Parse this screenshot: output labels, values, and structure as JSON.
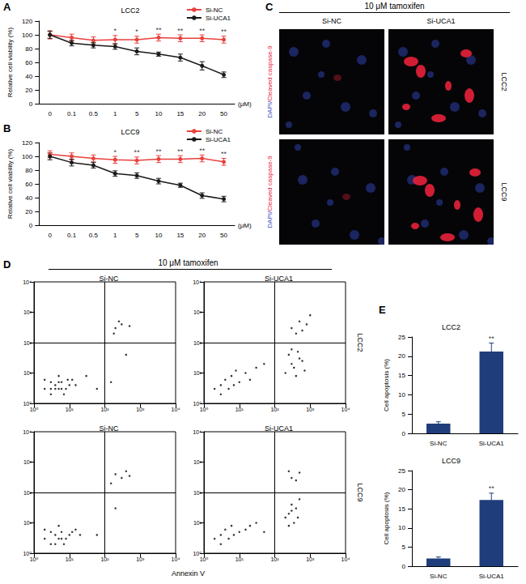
{
  "chart_data": [
    {
      "type": "line",
      "title": "LCC2",
      "xlabel": "(μM)",
      "ylabel": "Relative cell viability (%)",
      "categories": [
        "0",
        "0.1",
        "0.5",
        "1",
        "5",
        "10",
        "15",
        "20",
        "50"
      ],
      "ylim": [
        0,
        120
      ],
      "yticks": [
        0,
        20,
        40,
        60,
        80,
        100,
        120
      ],
      "grid": false,
      "legend": "upper right",
      "series": [
        {
          "name": "Si-NC",
          "color": "#e8413c",
          "marker": "circle",
          "line_style": "solid",
          "values": [
            100,
            96,
            92,
            93,
            93,
            96,
            95,
            95,
            93
          ],
          "errors": [
            6,
            5,
            5,
            6,
            5,
            5,
            5,
            5,
            5
          ]
        },
        {
          "name": "Si-UCA1",
          "color": "#1a1a1a",
          "marker": "circle",
          "line_style": "solid",
          "values": [
            100,
            88,
            85,
            83,
            76,
            72,
            67,
            55,
            42
          ],
          "errors": [
            5,
            4,
            4,
            4,
            5,
            3,
            5,
            6,
            4
          ]
        }
      ],
      "annotations": [
        {
          "category": "1",
          "text": "*"
        },
        {
          "category": "5",
          "text": "*"
        },
        {
          "category": "10",
          "text": "**"
        },
        {
          "category": "15",
          "text": "**"
        },
        {
          "category": "20",
          "text": "**"
        },
        {
          "category": "50",
          "text": "**"
        }
      ]
    },
    {
      "type": "line",
      "title": "LCC9",
      "xlabel": "(μM)",
      "ylabel": "Relative cell viability (%)",
      "categories": [
        "0",
        "0.1",
        "0.5",
        "1",
        "5",
        "10",
        "15",
        "20",
        "50"
      ],
      "ylim": [
        0,
        120
      ],
      "yticks": [
        0,
        20,
        40,
        60,
        80,
        100,
        120
      ],
      "grid": false,
      "legend": "upper right",
      "series": [
        {
          "name": "Si-NC",
          "color": "#e8413c",
          "marker": "circle",
          "line_style": "solid",
          "values": [
            103,
            100,
            97,
            95,
            94,
            96,
            96,
            97,
            92
          ],
          "errors": [
            5,
            5,
            5,
            5,
            5,
            5,
            5,
            5,
            5
          ]
        },
        {
          "name": "Si-UCA1",
          "color": "#1a1a1a",
          "marker": "circle",
          "line_style": "solid",
          "values": [
            100,
            91,
            87,
            75,
            72,
            64,
            58,
            43,
            38
          ],
          "errors": [
            5,
            5,
            4,
            4,
            4,
            4,
            3,
            4,
            4
          ]
        }
      ],
      "annotations": [
        {
          "category": "1",
          "text": "*"
        },
        {
          "category": "5",
          "text": "**"
        },
        {
          "category": "10",
          "text": "**"
        },
        {
          "category": "15",
          "text": "**"
        },
        {
          "category": "20",
          "text": "**"
        },
        {
          "category": "50",
          "text": "**"
        }
      ]
    },
    {
      "type": "scatter",
      "title": "Si-NC",
      "log": true,
      "color": "#000000",
      "marker": "circle",
      "grid": false,
      "xlim": [
        1,
        10000
      ],
      "ylim": [
        1,
        10000
      ],
      "xticks": [
        {
          "value": 1,
          "label": "10⁰"
        },
        {
          "value": 10,
          "label": "10¹"
        },
        {
          "value": 100,
          "label": "10²"
        },
        {
          "value": 1000,
          "label": "10³"
        },
        {
          "value": 10000,
          "label": "10⁴"
        }
      ],
      "yticks": [
        {
          "value": 1,
          "label": "10⁰"
        },
        {
          "value": 10,
          "label": "10¹"
        },
        {
          "value": 100,
          "label": "10²"
        },
        {
          "value": 1000,
          "label": "10³"
        },
        {
          "value": 10000,
          "label": "10⁴"
        }
      ],
      "quadrant": {
        "x": 100,
        "y": 100
      },
      "x": [
        2,
        3,
        4,
        5,
        6,
        3,
        8,
        10,
        2,
        5,
        7,
        4,
        12,
        6,
        3,
        9,
        15,
        5,
        60,
        30,
        150,
        400,
        180,
        200,
        300,
        500,
        250
      ],
      "values": [
        3,
        2,
        4,
        3,
        5,
        5,
        3,
        4,
        6,
        8,
        2,
        3,
        6,
        3,
        3,
        6,
        4,
        5,
        3,
        8,
        5,
        40,
        200,
        300,
        400,
        350,
        500
      ]
    },
    {
      "type": "scatter",
      "title": "Si-UCA1",
      "log": true,
      "color": "#000000",
      "marker": "circle",
      "grid": false,
      "xlim": [
        1,
        10000
      ],
      "ylim": [
        1,
        10000
      ],
      "xticks": [
        {
          "value": 1,
          "label": "10⁰"
        },
        {
          "value": 10,
          "label": "10¹"
        },
        {
          "value": 100,
          "label": "10²"
        },
        {
          "value": 1000,
          "label": "10³"
        },
        {
          "value": 10000,
          "label": "10⁴"
        }
      ],
      "yticks": [
        {
          "value": 1,
          "label": "10⁰"
        },
        {
          "value": 10,
          "label": "10¹"
        },
        {
          "value": 100,
          "label": "10²"
        },
        {
          "value": 1000,
          "label": "10³"
        },
        {
          "value": 10000,
          "label": "10⁴"
        }
      ],
      "quadrant": {
        "x": 100,
        "y": 100
      },
      "x": [
        2,
        3,
        5,
        4,
        7,
        10,
        3,
        6,
        15,
        20,
        8,
        30,
        50,
        200,
        300,
        400,
        500,
        250,
        350,
        600,
        450,
        700,
        300,
        300,
        500,
        800,
        400,
        1000,
        600
      ],
      "values": [
        3,
        4,
        3,
        6,
        4,
        5,
        2,
        8,
        10,
        6,
        12,
        15,
        20,
        10,
        20,
        8,
        30,
        40,
        15,
        25,
        50,
        12,
        60,
        300,
        500,
        400,
        200,
        800,
        250
      ]
    },
    {
      "type": "scatter",
      "title": "Si-NC",
      "log": true,
      "color": "#000000",
      "marker": "circle",
      "grid": false,
      "xlim": [
        1,
        10000
      ],
      "ylim": [
        1,
        10000
      ],
      "xticks": [
        {
          "value": 1,
          "label": "10⁰"
        },
        {
          "value": 10,
          "label": "10¹"
        },
        {
          "value": 100,
          "label": "10²"
        },
        {
          "value": 1000,
          "label": "10³"
        },
        {
          "value": 10000,
          "label": "10⁴"
        }
      ],
      "yticks": [
        {
          "value": 1,
          "label": "10⁰"
        },
        {
          "value": 10,
          "label": "10¹"
        },
        {
          "value": 100,
          "label": "10²"
        },
        {
          "value": 1000,
          "label": "10³"
        },
        {
          "value": 10000,
          "label": "10⁴"
        }
      ],
      "quadrant": {
        "x": 100,
        "y": 100
      },
      "x": [
        2,
        3,
        4,
        5,
        6,
        3,
        8,
        10,
        2,
        5,
        7,
        12,
        4,
        6,
        15,
        20,
        60,
        200,
        300,
        400,
        150,
        500,
        200
      ],
      "values": [
        3,
        2,
        4,
        3,
        5,
        5,
        3,
        4,
        6,
        8,
        2,
        5,
        2,
        3,
        6,
        4,
        4,
        400,
        300,
        500,
        200,
        350,
        30
      ]
    },
    {
      "type": "scatter",
      "title": "Si-UCA1",
      "log": true,
      "color": "#000000",
      "marker": "circle",
      "grid": false,
      "xlim": [
        1,
        10000
      ],
      "ylim": [
        1,
        10000
      ],
      "xticks": [
        {
          "value": 1,
          "label": "10⁰"
        },
        {
          "value": 10,
          "label": "10¹"
        },
        {
          "value": 100,
          "label": "10²"
        },
        {
          "value": 1000,
          "label": "10³"
        },
        {
          "value": 10000,
          "label": "10⁴"
        }
      ],
      "yticks": [
        {
          "value": 1,
          "label": "10⁰"
        },
        {
          "value": 10,
          "label": "10¹"
        },
        {
          "value": 100,
          "label": "10²"
        },
        {
          "value": 1000,
          "label": "10³"
        },
        {
          "value": 10000,
          "label": "10⁴"
        }
      ],
      "quadrant": {
        "x": 100,
        "y": 100
      },
      "x": [
        2,
        3,
        5,
        4,
        7,
        10,
        3,
        6,
        15,
        20,
        30,
        50,
        200,
        300,
        350,
        400,
        250,
        300,
        450,
        250,
        500,
        300,
        500,
        400,
        250
      ],
      "values": [
        3,
        4,
        3,
        6,
        4,
        5,
        2,
        8,
        6,
        8,
        10,
        5,
        15,
        25,
        10,
        30,
        20,
        40,
        15,
        8,
        60,
        300,
        450,
        250,
        500
      ]
    },
    {
      "type": "bar",
      "title": "LCC2",
      "ylabel": "Cell apoptosis (%)",
      "categories": [
        "Si-NC",
        "Si-UCA1"
      ],
      "values": [
        2.5,
        21.2
      ],
      "errors": [
        0.5,
        2.2
      ],
      "color": "#1f3d7a",
      "ylim": [
        0,
        25
      ],
      "yticks": [
        0,
        5,
        10,
        15,
        20,
        25
      ],
      "grid": false,
      "annotations": [
        {
          "category": "Si-UCA1",
          "text": "**"
        }
      ]
    },
    {
      "type": "bar",
      "title": "LCC9",
      "ylabel": "Cell apoptosis (%)",
      "categories": [
        "Si-NC",
        "Si-UCA1"
      ],
      "values": [
        2.0,
        17.3
      ],
      "errors": [
        0.4,
        1.8
      ],
      "color": "#1f3d7a",
      "ylim": [
        0,
        25
      ],
      "yticks": [
        0,
        5,
        10,
        15,
        20,
        25
      ],
      "grid": false,
      "annotations": [
        {
          "category": "Si-UCA1",
          "text": "**"
        }
      ]
    }
  ],
  "figure": {
    "panel_letters": [
      "A",
      "B",
      "C",
      "D",
      "E"
    ],
    "panel_c": {
      "header": "10 μM tamoxifen",
      "columns": [
        "Si-NC",
        "Si-UCA1"
      ],
      "rows": [
        "LCC2",
        "LCC9"
      ],
      "stain": "DAPI/Cleaved caspase-9"
    },
    "panel_d": {
      "header": "10 μM tamoxifen",
      "xlabel": "Annexin V",
      "rows": [
        "LCC2",
        "LCC9"
      ]
    }
  }
}
